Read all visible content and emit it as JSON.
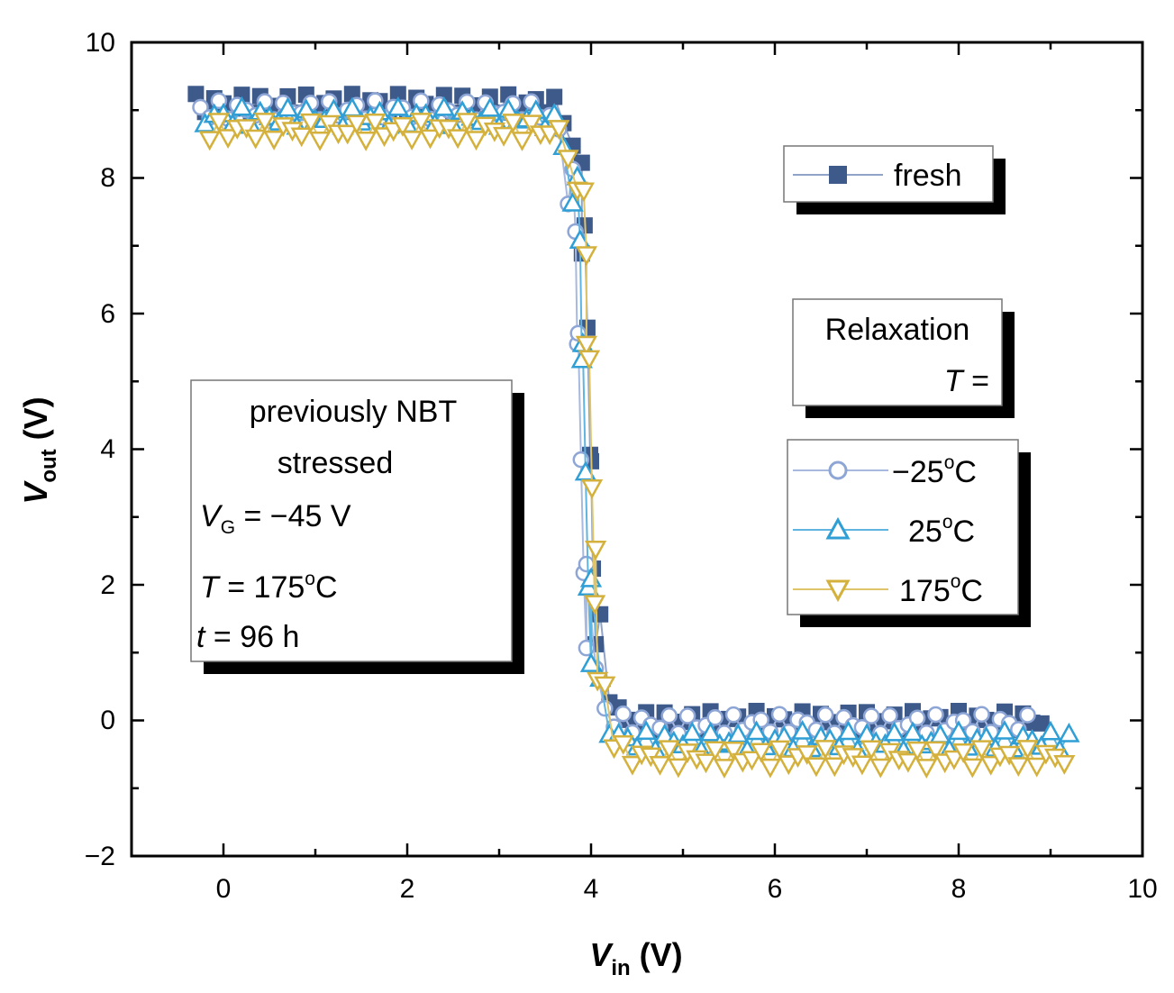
{
  "chart_data": {
    "type": "line",
    "title": "",
    "xlabel": {
      "main": "V",
      "sub": "in",
      "unit": " (V)"
    },
    "ylabel": {
      "main": "V",
      "sub": "out",
      "unit": " (V)"
    },
    "xlim": [
      -1,
      10
    ],
    "ylim": [
      -2,
      10
    ],
    "xticks": [
      "0",
      "2",
      "4",
      "6",
      "8",
      "10"
    ],
    "yticks": [
      "−2",
      "0",
      "2",
      "4",
      "6",
      "8",
      "10"
    ],
    "series": [
      {
        "name": "fresh",
        "marker": "square",
        "color": "#3d5a8a",
        "line_color": "#8fa4c8",
        "vt": 3.98,
        "high": 9.1,
        "low": 0.0
      },
      {
        "name": "−25°C",
        "marker": "circle",
        "color": "#8ea6d6",
        "line_color": "#a7b9df",
        "vt": 3.88,
        "high": 9.0,
        "low": -0.05
      },
      {
        "name": "25°C",
        "marker": "triangle-up",
        "color": "#2f9fd6",
        "line_color": "#5fb4e0",
        "vt": 3.93,
        "high": 8.9,
        "low": -0.3
      },
      {
        "name": "175°C",
        "marker": "triangle-down",
        "color": "#d4b13c",
        "line_color": "#e0c46a",
        "vt": 4.0,
        "high": 8.7,
        "low": -0.55
      }
    ]
  },
  "annotation_box": {
    "line1": "previously NBT",
    "line2": "stressed",
    "vg_var": "V",
    "vg_sub": "G",
    "vg_value": " = −45 V",
    "t_var": "T",
    "t_value": " = 175",
    "t_sup": "o",
    "t_unit": "C",
    "time_var": "t",
    "time_value": " = 96 h"
  },
  "legend": {
    "fresh_label": "fresh",
    "relax_title": "Relaxation",
    "relax_var": "T",
    "relax_eq": " =",
    "entries": [
      {
        "num": "−25",
        "sup": "o",
        "unit": "C"
      },
      {
        "num": "25",
        "sup": "o",
        "unit": "C"
      },
      {
        "num": "175",
        "sup": "o",
        "unit": "C"
      }
    ]
  }
}
